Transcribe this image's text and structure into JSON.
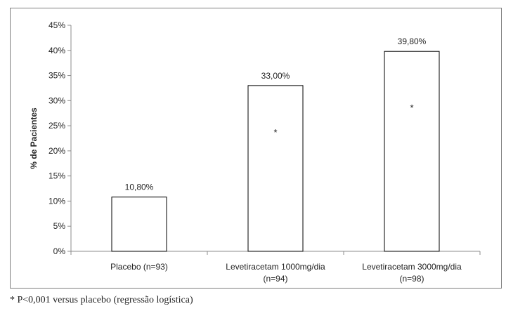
{
  "chart_data": {
    "type": "bar",
    "ylabel": "% de Pacientes",
    "ylim": [
      0,
      45
    ],
    "yticks": [
      "0%",
      "5%",
      "10%",
      "15%",
      "20%",
      "25%",
      "30%",
      "35%",
      "40%",
      "45%"
    ],
    "categories": [
      [
        "Placebo (n=93)"
      ],
      [
        "Levetiracetam 1000mg/dia",
        "(n=94)"
      ],
      [
        "Levetiracetam 3000mg/dia",
        "(n=98)"
      ]
    ],
    "values": [
      10.8,
      33.0,
      39.8
    ],
    "data_labels": [
      "10,80%",
      "33,00%",
      "39,80%"
    ],
    "significance_markers": [
      "",
      "*",
      "*"
    ],
    "grid": false,
    "legend": "none"
  },
  "footnote": "* P<0,001 versus placebo (regressão logística)"
}
